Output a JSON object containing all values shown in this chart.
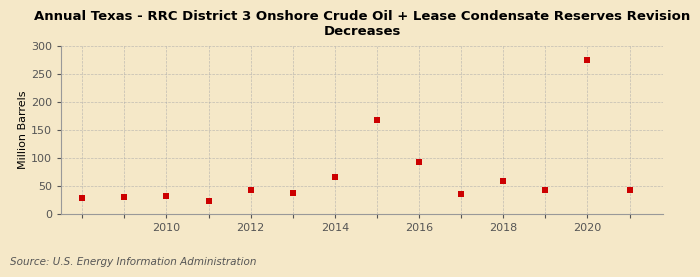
{
  "title": "Annual Texas - RRC District 3 Onshore Crude Oil + Lease Condensate Reserves Revision\nDecreases",
  "ylabel": "Million Barrels",
  "source": "Source: U.S. Energy Information Administration",
  "background_color": "#f5e8c8",
  "plot_background_color": "#f5e8c8",
  "years": [
    2008,
    2009,
    2010,
    2011,
    2012,
    2013,
    2014,
    2015,
    2016,
    2017,
    2018,
    2019,
    2020,
    2021
  ],
  "values": [
    28,
    30,
    32,
    22,
    43,
    37,
    65,
    168,
    92,
    35,
    58,
    43,
    275,
    43
  ],
  "marker_color": "#cc0000",
  "marker": "s",
  "marker_size": 5,
  "ylim": [
    0,
    300
  ],
  "yticks": [
    0,
    50,
    100,
    150,
    200,
    250,
    300
  ],
  "xlim": [
    2007.5,
    2021.8
  ],
  "xticks": [
    2008,
    2009,
    2010,
    2011,
    2012,
    2013,
    2014,
    2015,
    2016,
    2017,
    2018,
    2019,
    2020,
    2021
  ],
  "xlabel_years": [
    2010,
    2012,
    2014,
    2016,
    2018,
    2020
  ],
  "grid_color": "#aaaaaa",
  "title_fontsize": 9.5,
  "axis_fontsize": 8,
  "source_fontsize": 7.5
}
